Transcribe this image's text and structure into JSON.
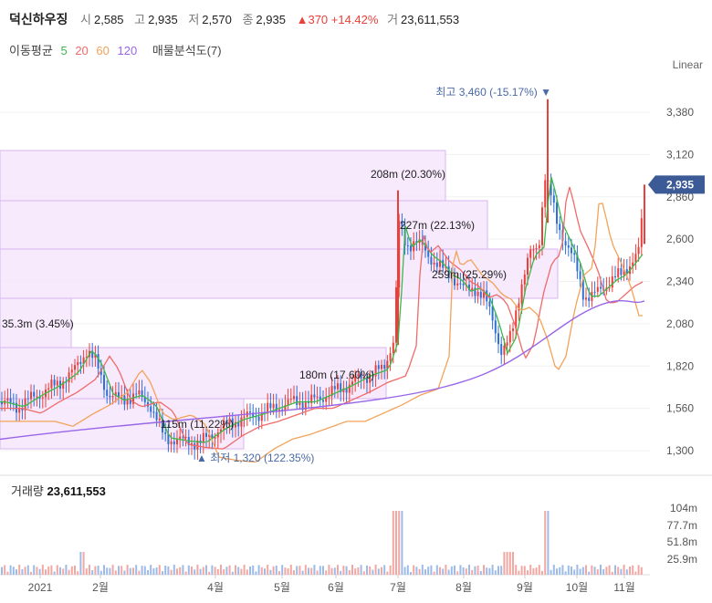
{
  "header": {
    "name": "덕신하우징",
    "open_label": "시",
    "open": "2,585",
    "high_label": "고",
    "high": "2,935",
    "low_label": "저",
    "low": "2,570",
    "close_label": "종",
    "close": "2,935",
    "change": "▲370 +14.42%",
    "volume_label": "거",
    "volume": "23,611,553"
  },
  "indicators": {
    "ma_label": "이동평균",
    "ma5": "5",
    "ma20": "20",
    "ma60": "60",
    "ma120": "120",
    "vp_label": "매물분석도(7)"
  },
  "scale_label": "Linear",
  "volume_panel": {
    "label": "거래량",
    "value": "23,611,553"
  },
  "colors": {
    "up": "#e8403a",
    "down": "#2f6fd6",
    "ma5": "#3db84a",
    "ma20": "#f06a6a",
    "ma60": "#f2a35a",
    "ma120": "#9966e8",
    "profile_fill": "#f4e6fb",
    "profile_stroke": "#d8b6ee",
    "badge": "#3c5a95"
  },
  "chart_data": {
    "type": "candlestick",
    "price_axis": {
      "min": 1300,
      "max": 3380,
      "ticks": [
        "1,300",
        "1,560",
        "1,820",
        "2,080",
        "2,340",
        "2,600",
        "2,860",
        "3,120",
        "3,380"
      ]
    },
    "volume_axis": {
      "ticks": [
        "25.9m",
        "51.8m",
        "77.7m",
        "104m"
      ]
    },
    "x_ticks": [
      "2021",
      "2월",
      "4월",
      "5월",
      "6월",
      "7월",
      "8월",
      "9월",
      "10월",
      "11월"
    ],
    "last_price_badge": "2,935",
    "high_marker": "최고 3,460 (-15.17%) ▼",
    "low_marker": "▲ 최저 1,320 (122.35%)",
    "volume_profile": [
      {
        "label": "208m (20.30%)"
      },
      {
        "label": "227m (22.13%)"
      },
      {
        "label": "259m (25.29%)"
      },
      {
        "label": "35.3m (3.45%)"
      },
      {
        "label": "180m (17.60%)"
      },
      {
        "label": "115m (11.22%)"
      }
    ]
  }
}
